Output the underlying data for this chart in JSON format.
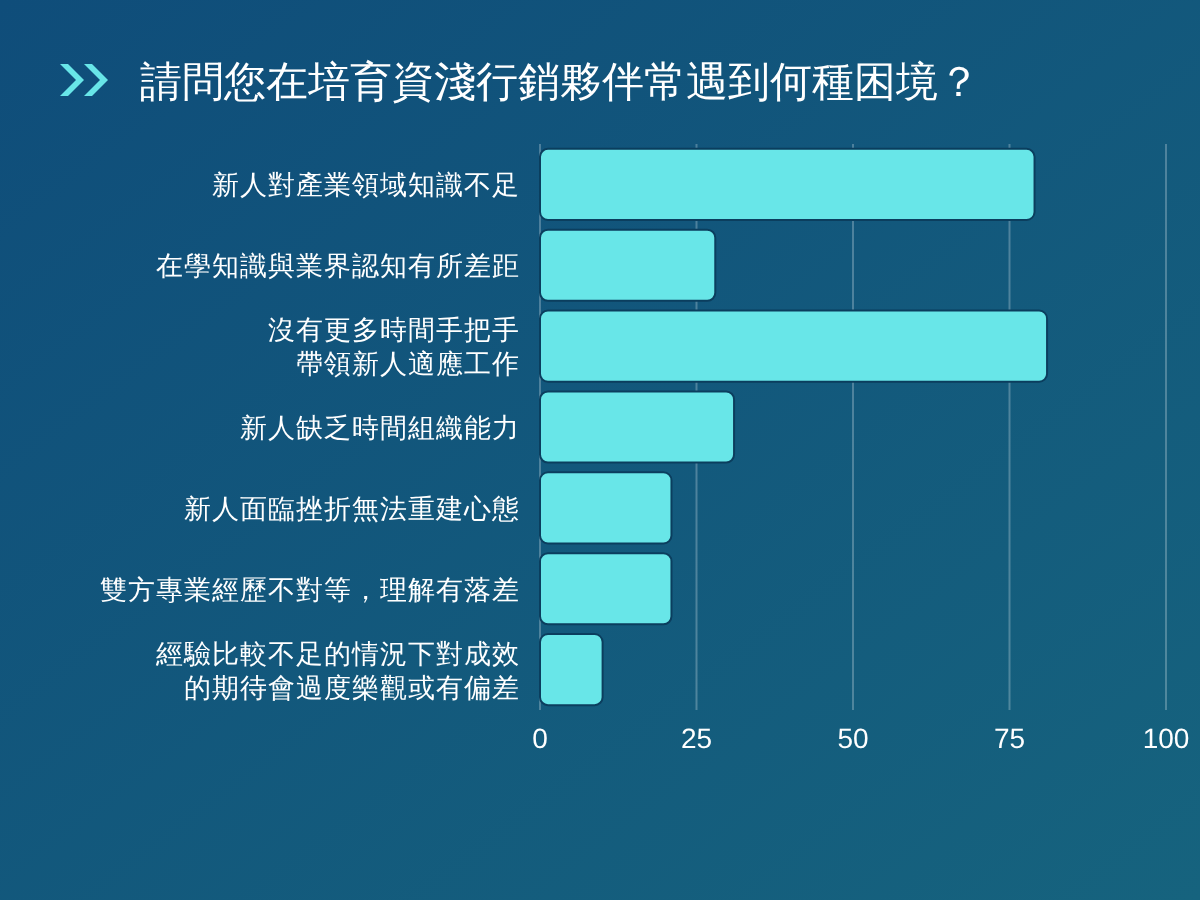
{
  "chart_data": {
    "type": "bar",
    "orientation": "horizontal",
    "title": "請問您在培育資淺行銷夥伴常遇到何種困境？",
    "categories": [
      "新人對產業領域知識不足",
      "在學知識與業界認知有所差距",
      "沒有更多時間手把手帶領新人適應工作",
      "新人缺乏時間組織能力",
      "新人面臨挫折無法重建心態",
      "雙方專業經歷不對等，理解有落差",
      "經驗比較不足的情況下對成效的期待會過度樂觀或有偏差"
    ],
    "values": [
      79,
      28,
      81,
      31,
      21,
      21,
      10
    ],
    "color": "#68e6e8",
    "xlim": [
      0,
      100
    ],
    "xticks": [
      0,
      25,
      50,
      75,
      100
    ],
    "grid": "x"
  }
}
